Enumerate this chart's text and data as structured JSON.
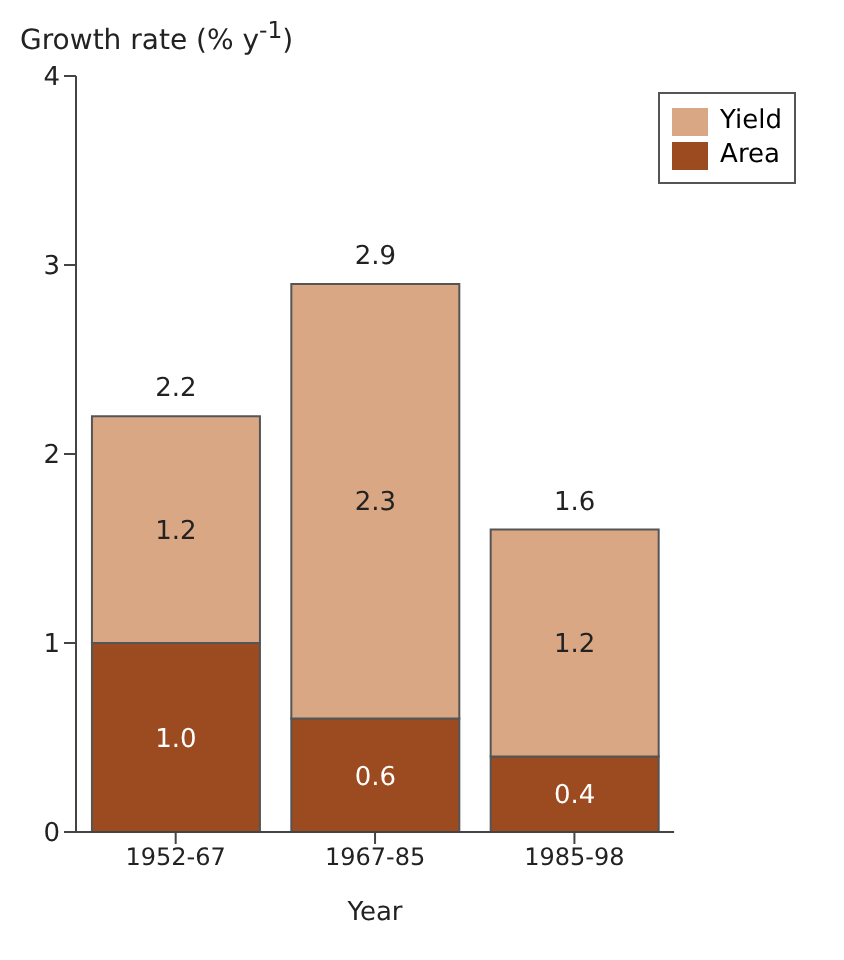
{
  "chart_data": {
    "type": "bar",
    "ylabel": "Growth rate (% y$^{-1}$)",
    "xlabel": "Year",
    "categories": [
      "1952-67",
      "1967-85",
      "1985-98"
    ],
    "stacked": true,
    "series": [
      {
        "name": "Area",
        "color": "#9c4a1f",
        "values": [
          1.0,
          0.6,
          0.4
        ],
        "value_labels": [
          "1.0",
          "0.6",
          "0.4"
        ]
      },
      {
        "name": "Yield",
        "color": "#d9a784",
        "values": [
          1.2,
          2.3,
          1.2
        ],
        "value_labels": [
          "1.2",
          "2.3",
          "1.2"
        ]
      }
    ],
    "totals": [
      "2.2",
      "2.9",
      "1.6"
    ],
    "ylim": [
      0,
      4
    ],
    "yticks": [
      0,
      1,
      2,
      3,
      4
    ],
    "grid": false,
    "legend": "top right"
  }
}
